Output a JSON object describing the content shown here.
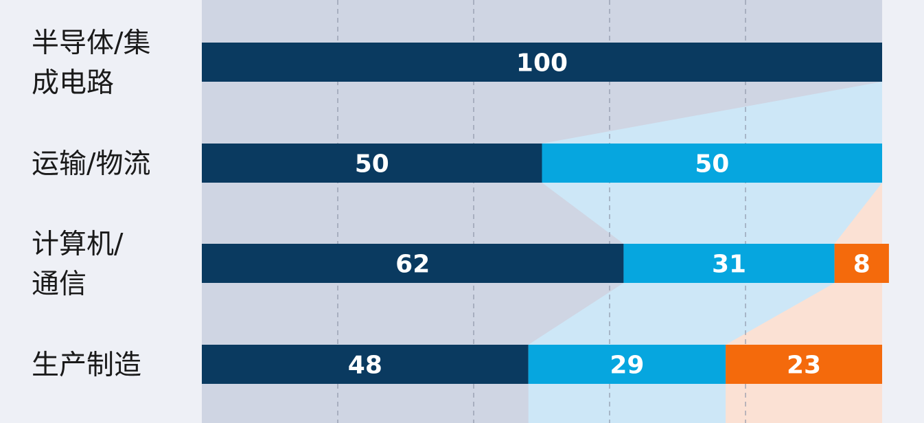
{
  "chart_data": {
    "type": "bar",
    "orientation": "horizontal",
    "stacked": true,
    "normalized": true,
    "title": "",
    "xlabel": "",
    "ylabel": "",
    "xlim": [
      0,
      100
    ],
    "grid": true,
    "legend": "none",
    "categories": [
      [
        "半导体/集",
        "成电路"
      ],
      [
        "运输/物流"
      ],
      [
        "计算机/",
        "通信"
      ],
      [
        "生产制造"
      ]
    ],
    "series": [
      {
        "color": "#0a3a60",
        "values": [
          100,
          50,
          62,
          48
        ]
      },
      {
        "color": "#06a6df",
        "values": [
          0,
          50,
          31,
          29
        ]
      },
      {
        "color": "#f46a0c",
        "values": [
          0,
          0,
          8,
          23
        ]
      }
    ],
    "band_colors": [
      "#cfd5e3",
      "#cde7f7",
      "#fbe1d4"
    ]
  }
}
